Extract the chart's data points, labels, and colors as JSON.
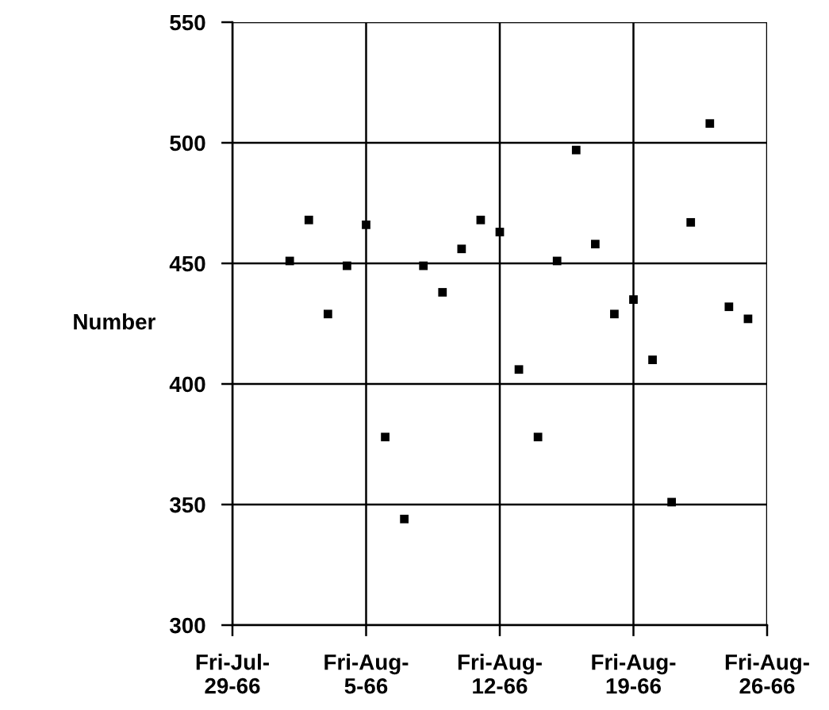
{
  "chart_data": {
    "type": "scatter",
    "ylabel": "Number",
    "x": [
      "1966-08-01",
      "1966-08-02",
      "1966-08-03",
      "1966-08-04",
      "1966-08-05",
      "1966-08-06",
      "1966-08-07",
      "1966-08-08",
      "1966-08-09",
      "1966-08-10",
      "1966-08-11",
      "1966-08-12",
      "1966-08-13",
      "1966-08-14",
      "1966-08-15",
      "1966-08-16",
      "1966-08-17",
      "1966-08-18",
      "1966-08-19",
      "1966-08-20",
      "1966-08-21",
      "1966-08-22",
      "1966-08-23",
      "1966-08-24",
      "1966-08-25"
    ],
    "series": [
      {
        "color": "#000000",
        "values": [
          451,
          468,
          429,
          449,
          466,
          378,
          344,
          449,
          438,
          456,
          468,
          463,
          406,
          378,
          451,
          497,
          458,
          429,
          435,
          410,
          351,
          467,
          508,
          432,
          427
        ]
      }
    ],
    "xlim": [
      "1966-07-29",
      "1966-08-26"
    ],
    "xticks": [
      {
        "value": "1966-07-29",
        "label": "Fri-Jul-\n29-66"
      },
      {
        "value": "1966-08-05",
        "label": "Fri-Aug-\n5-66"
      },
      {
        "value": "1966-08-12",
        "label": "Fri-Aug-\n12-66"
      },
      {
        "value": "1966-08-19",
        "label": "Fri-Aug-\n19-66"
      },
      {
        "value": "1966-08-26",
        "label": "Fri-Aug-\n26-66"
      }
    ],
    "ylim": [
      300,
      550
    ],
    "yticks": [
      300,
      350,
      400,
      450,
      500,
      550
    ],
    "grid": true,
    "marker": "square"
  }
}
